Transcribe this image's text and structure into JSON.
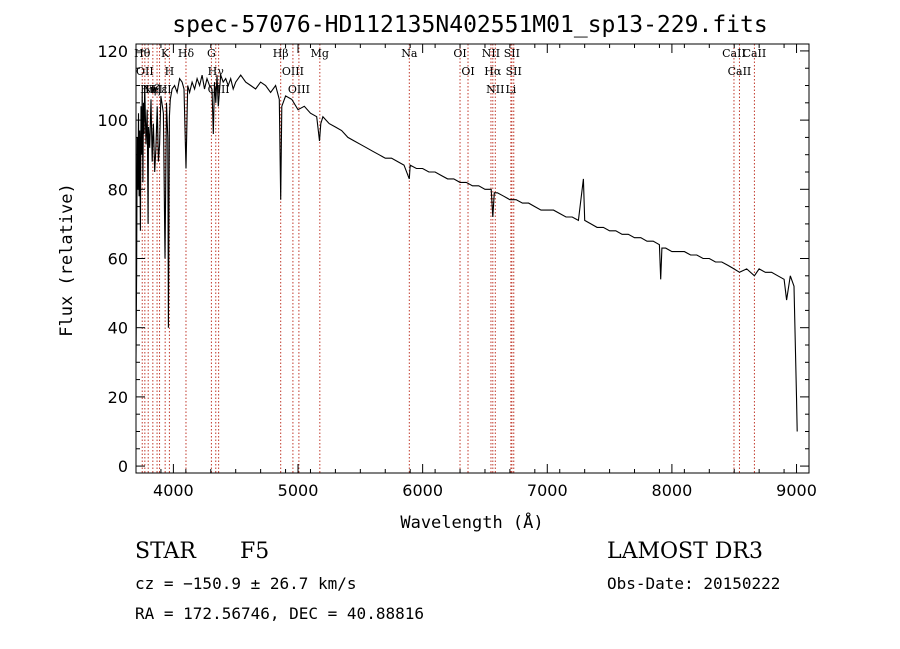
{
  "chart_data": {
    "type": "line",
    "title": "spec-57076-HD112135N402551M01_sp13-229.fits",
    "xlabel": "Wavelength (Å)",
    "ylabel": "Flux (relative)",
    "xlim": [
      3700,
      9100
    ],
    "ylim": [
      -2,
      122
    ],
    "xticks": [
      4000,
      5000,
      6000,
      7000,
      8000,
      9000
    ],
    "yticks": [
      0,
      20,
      40,
      60,
      80,
      100,
      120
    ],
    "series": [
      {
        "name": "spectrum",
        "x": [
          3700,
          3705,
          3710,
          3715,
          3720,
          3725,
          3730,
          3735,
          3740,
          3745,
          3750,
          3755,
          3760,
          3765,
          3770,
          3780,
          3790,
          3797,
          3800,
          3810,
          3820,
          3830,
          3835,
          3840,
          3850,
          3860,
          3870,
          3880,
          3889,
          3900,
          3920,
          3933,
          3945,
          3955,
          3960,
          3968,
          3975,
          3990,
          4010,
          4030,
          4050,
          4070,
          4085,
          4101,
          4115,
          4130,
          4150,
          4170,
          4190,
          4210,
          4230,
          4250,
          4270,
          4290,
          4310,
          4320,
          4330,
          4340,
          4350,
          4360,
          4380,
          4400,
          4420,
          4440,
          4460,
          4480,
          4500,
          4540,
          4580,
          4620,
          4660,
          4700,
          4740,
          4780,
          4820,
          4850,
          4861,
          4870,
          4900,
          4950,
          5000,
          5050,
          5100,
          5150,
          5172,
          5183,
          5200,
          5250,
          5300,
          5350,
          5400,
          5450,
          5500,
          5550,
          5600,
          5650,
          5700,
          5750,
          5800,
          5850,
          5893,
          5900,
          5950,
          6000,
          6050,
          6100,
          6150,
          6200,
          6250,
          6300,
          6350,
          6400,
          6450,
          6500,
          6550,
          6563,
          6575,
          6600,
          6650,
          6700,
          6750,
          6800,
          6850,
          6900,
          6950,
          7000,
          7050,
          7100,
          7150,
          7200,
          7250,
          7290,
          7300,
          7350,
          7400,
          7450,
          7500,
          7550,
          7600,
          7650,
          7700,
          7750,
          7800,
          7850,
          7900,
          7910,
          7920,
          7950,
          8000,
          8050,
          8100,
          8150,
          8200,
          8250,
          8300,
          8350,
          8400,
          8450,
          8498,
          8542,
          8600,
          8662,
          8700,
          8750,
          8800,
          8850,
          8900,
          8920,
          8950,
          8980,
          9000,
          9005
        ],
        "values": [
          30,
          55,
          95,
          80,
          102,
          78,
          97,
          68,
          104,
          90,
          108,
          82,
          105,
          96,
          110,
          93,
          103,
          70,
          98,
          92,
          106,
          88,
          95,
          99,
          85,
          92,
          104,
          88,
          93,
          107,
          102,
          60,
          105,
          95,
          40,
          101,
          106,
          109,
          110,
          108,
          112,
          111,
          109,
          86,
          110,
          108,
          111,
          109,
          112,
          110,
          113,
          109,
          112,
          110,
          109,
          96,
          111,
          105,
          113,
          104,
          113,
          111,
          112,
          110,
          112,
          109,
          111,
          113,
          111,
          110,
          109,
          111,
          110,
          108,
          110,
          106,
          77,
          104,
          107,
          106,
          103,
          104,
          102,
          101,
          94,
          99,
          101,
          99,
          98,
          97,
          95,
          94,
          93,
          92,
          91,
          90,
          89,
          89,
          88,
          87,
          83,
          87,
          86,
          86,
          85,
          85,
          84,
          83,
          83,
          82,
          82,
          81,
          81,
          80,
          80,
          72,
          79,
          79,
          78,
          77,
          77,
          76,
          76,
          75,
          74,
          74,
          74,
          73,
          72,
          72,
          71,
          83,
          71,
          70,
          69,
          69,
          68,
          68,
          67,
          67,
          66,
          66,
          65,
          65,
          64,
          54,
          63,
          63,
          62,
          62,
          62,
          61,
          61,
          60,
          60,
          59,
          59,
          58,
          57,
          56,
          57,
          55,
          57,
          56,
          56,
          55,
          54,
          48,
          55,
          52,
          20,
          10
        ]
      }
    ],
    "line_labels": [
      {
        "x": 3750,
        "text": "Hθ"
      },
      {
        "x": 3771,
        "text": "OII"
      },
      {
        "x": 3798,
        "text": "Hη"
      },
      {
        "x": 3835,
        "text": "Hζ"
      },
      {
        "x": 3869,
        "text": "NeIII"
      },
      {
        "x": 3889,
        "text": "Hε"
      },
      {
        "x": 3934,
        "text": "K"
      },
      {
        "x": 3968,
        "text": "H"
      },
      {
        "x": 4101,
        "text": "Hδ"
      },
      {
        "x": 4305,
        "text": "G"
      },
      {
        "x": 4340,
        "text": "Hγ"
      },
      {
        "x": 4363,
        "text": "OIII"
      },
      {
        "x": 4861,
        "text": "Hβ"
      },
      {
        "x": 4959,
        "text": "OIII"
      },
      {
        "x": 5007,
        "text": "OIII"
      },
      {
        "x": 5175,
        "text": "Mg"
      },
      {
        "x": 5893,
        "text": "Na"
      },
      {
        "x": 6300,
        "text": "OI"
      },
      {
        "x": 6364,
        "text": "OI"
      },
      {
        "x": 6548,
        "text": "NII"
      },
      {
        "x": 6563,
        "text": "Hα"
      },
      {
        "x": 6583,
        "text": "NII"
      },
      {
        "x": 6708,
        "text": "Li"
      },
      {
        "x": 6716,
        "text": "SII"
      },
      {
        "x": 6731,
        "text": "SII"
      },
      {
        "x": 8498,
        "text": "CaII"
      },
      {
        "x": 8542,
        "text": "CaII"
      },
      {
        "x": 8662,
        "text": "CaII"
      }
    ]
  },
  "info": {
    "class": "STAR",
    "subclass": "F5",
    "survey": "LAMOST DR3",
    "cz": "cz = −150.9 ± 26.7 km/s",
    "obs_date": "Obs-Date: 20150222",
    "coords": "RA = 172.56746, DEC =  40.88816"
  },
  "colors": {
    "axis": "#000000",
    "spectrum": "#000000",
    "marker_line": "#c0392b",
    "background": "#ffffff"
  }
}
